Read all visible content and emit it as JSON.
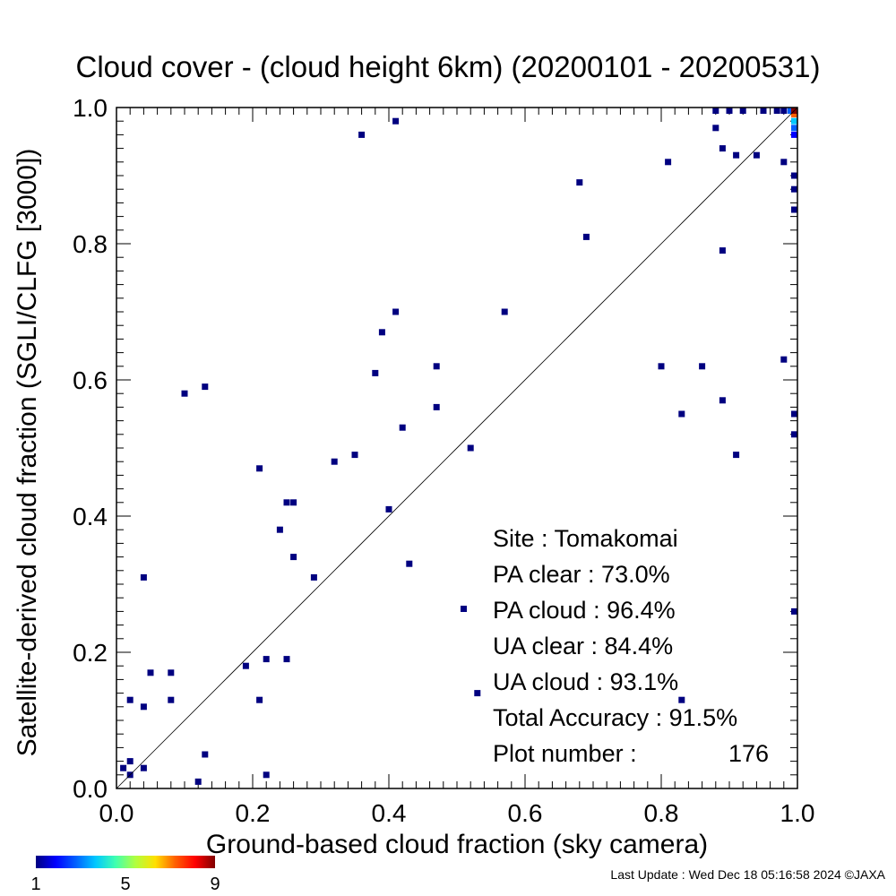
{
  "chart_data": {
    "type": "scatter",
    "title": "Cloud cover - (cloud height 6km)  (20200101 - 20200531)",
    "xlabel": "Ground-based cloud fraction (sky camera)",
    "ylabel": "Satellite-derived cloud fraction (SGLI/CLFG [3000])",
    "xlim": [
      0.0,
      1.0
    ],
    "ylim": [
      0.0,
      1.0
    ],
    "x_ticks": [
      "0.0",
      "0.2",
      "0.4",
      "0.6",
      "0.8",
      "1.0"
    ],
    "y_ticks": [
      "0.0",
      "0.2",
      "0.4",
      "0.6",
      "0.8",
      "1.0"
    ],
    "reference_line": "y = x",
    "grid": false,
    "points": [
      {
        "x": 0.01,
        "y": 0.03
      },
      {
        "x": 0.02,
        "y": 0.02
      },
      {
        "x": 0.02,
        "y": 0.04
      },
      {
        "x": 0.02,
        "y": 0.13
      },
      {
        "x": 0.04,
        "y": 0.03
      },
      {
        "x": 0.04,
        "y": 0.12
      },
      {
        "x": 0.04,
        "y": 0.31
      },
      {
        "x": 0.05,
        "y": 0.17
      },
      {
        "x": 0.08,
        "y": 0.17
      },
      {
        "x": 0.08,
        "y": 0.13
      },
      {
        "x": 0.1,
        "y": 0.58
      },
      {
        "x": 0.12,
        "y": 0.01
      },
      {
        "x": 0.13,
        "y": 0.05
      },
      {
        "x": 0.13,
        "y": 0.59
      },
      {
        "x": 0.19,
        "y": 0.18
      },
      {
        "x": 0.21,
        "y": 0.13
      },
      {
        "x": 0.21,
        "y": 0.47
      },
      {
        "x": 0.22,
        "y": 0.19
      },
      {
        "x": 0.22,
        "y": 0.02
      },
      {
        "x": 0.24,
        "y": 0.38
      },
      {
        "x": 0.25,
        "y": 0.19
      },
      {
        "x": 0.25,
        "y": 0.42
      },
      {
        "x": 0.26,
        "y": 0.42
      },
      {
        "x": 0.26,
        "y": 0.34
      },
      {
        "x": 0.29,
        "y": 0.31
      },
      {
        "x": 0.32,
        "y": 0.48
      },
      {
        "x": 0.35,
        "y": 0.49
      },
      {
        "x": 0.36,
        "y": 0.96
      },
      {
        "x": 0.38,
        "y": 0.61
      },
      {
        "x": 0.39,
        "y": 0.67
      },
      {
        "x": 0.4,
        "y": 0.41
      },
      {
        "x": 0.41,
        "y": 0.7
      },
      {
        "x": 0.41,
        "y": 0.98
      },
      {
        "x": 0.42,
        "y": 0.53
      },
      {
        "x": 0.43,
        "y": 0.33
      },
      {
        "x": 0.47,
        "y": 0.62
      },
      {
        "x": 0.47,
        "y": 0.56
      },
      {
        "x": 0.52,
        "y": 0.5
      },
      {
        "x": 0.53,
        "y": 0.14
      },
      {
        "x": 0.57,
        "y": 0.7
      },
      {
        "x": 0.68,
        "y": 0.89
      },
      {
        "x": 0.69,
        "y": 0.81
      },
      {
        "x": 0.8,
        "y": 0.62
      },
      {
        "x": 0.81,
        "y": 0.92
      },
      {
        "x": 0.83,
        "y": 0.55
      },
      {
        "x": 0.83,
        "y": 0.13
      },
      {
        "x": 0.86,
        "y": 0.62
      },
      {
        "x": 0.88,
        "y": 0.97
      },
      {
        "x": 0.89,
        "y": 0.94
      },
      {
        "x": 0.89,
        "y": 0.79
      },
      {
        "x": 0.89,
        "y": 0.57
      },
      {
        "x": 0.91,
        "y": 0.93
      },
      {
        "x": 0.91,
        "y": 0.49
      },
      {
        "x": 0.94,
        "y": 0.93
      },
      {
        "x": 0.98,
        "y": 0.92
      },
      {
        "x": 0.98,
        "y": 0.63
      },
      {
        "x": 0.88,
        "y": 1.0
      },
      {
        "x": 0.9,
        "y": 1.0
      },
      {
        "x": 0.92,
        "y": 1.0
      },
      {
        "x": 0.95,
        "y": 1.0
      },
      {
        "x": 0.97,
        "y": 1.0
      },
      {
        "x": 0.98,
        "y": 1.0
      },
      {
        "x": 1.0,
        "y": 0.9
      },
      {
        "x": 1.0,
        "y": 0.88
      },
      {
        "x": 1.0,
        "y": 0.85
      },
      {
        "x": 1.0,
        "y": 0.55
      },
      {
        "x": 1.0,
        "y": 0.52
      },
      {
        "x": 1.0,
        "y": 0.26
      },
      {
        "x": 0.99,
        "y": 1.0,
        "count": 3
      },
      {
        "x": 1.0,
        "y": 0.96,
        "count": 2
      },
      {
        "x": 1.0,
        "y": 0.97,
        "count": 3
      },
      {
        "x": 1.0,
        "y": 0.98,
        "count": 4
      },
      {
        "x": 1.0,
        "y": 0.99,
        "count": 7
      },
      {
        "x": 1.0,
        "y": 1.0,
        "count": 9
      }
    ],
    "colorbar": {
      "ticks": [
        "1",
        "5",
        "9"
      ],
      "colors": [
        "#000080",
        "#0000ff",
        "#0060ff",
        "#00c8ff",
        "#40ffb0",
        "#b0ff40",
        "#ffe000",
        "#ff6000",
        "#ff0000",
        "#800000"
      ]
    },
    "annotation": {
      "site": "Site : Tomakomai",
      "pa_clear": "PA clear :  73.0%",
      "pa_cloud": "PA cloud :  96.4%",
      "ua_clear": "UA clear :  84.4%",
      "ua_cloud": "UA cloud :  93.1%",
      "total_accuracy": "Total Accuracy :  91.5%",
      "plot_number_label": "Plot number :",
      "plot_number_value": "176"
    },
    "marker_color": "#000080"
  },
  "footer": {
    "last_update": "Last Update : Wed Dec 18 05:16:58 2024  ©JAXA"
  }
}
